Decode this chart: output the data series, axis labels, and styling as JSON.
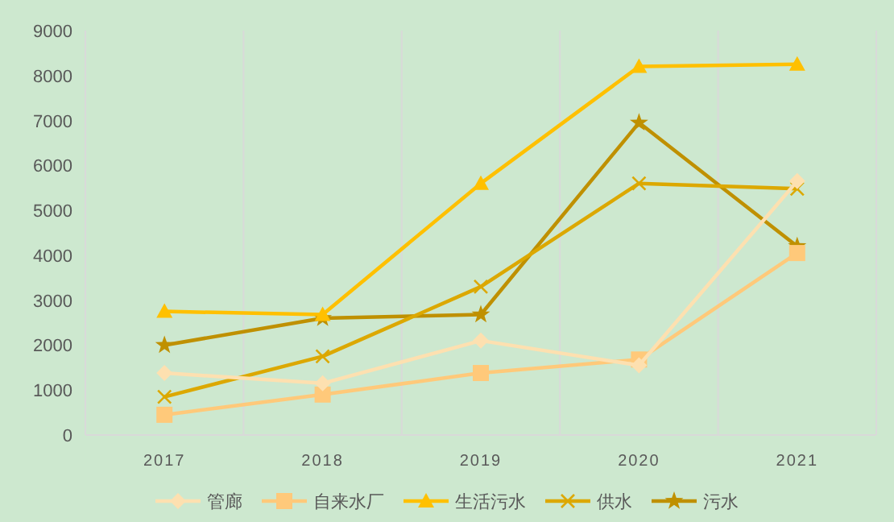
{
  "chart_data": {
    "type": "line",
    "categories": [
      "2017",
      "2018",
      "2019",
      "2020",
      "2021"
    ],
    "ylim": [
      0,
      9000
    ],
    "yticks": [
      0,
      1000,
      2000,
      3000,
      4000,
      5000,
      6000,
      7000,
      8000,
      9000
    ],
    "grid": "x",
    "legend": "bottom",
    "series": [
      {
        "name": "管廊",
        "color": "#fde0b0",
        "marker": "diamond",
        "values": [
          1380,
          1150,
          2100,
          1550,
          5650
        ]
      },
      {
        "name": "自来水厂",
        "color": "#ffc97a",
        "marker": "square",
        "values": [
          450,
          900,
          1380,
          1680,
          4050
        ]
      },
      {
        "name": "生活污水",
        "color": "#ffc000",
        "marker": "triangle",
        "values": [
          2750,
          2680,
          5600,
          8200,
          8250
        ]
      },
      {
        "name": "供水",
        "color": "#dca800",
        "marker": "cross",
        "values": [
          850,
          1750,
          3300,
          5600,
          5480
        ]
      },
      {
        "name": "污水",
        "color": "#bf9000",
        "marker": "star",
        "values": [
          2000,
          2600,
          2680,
          6950,
          4200
        ]
      }
    ]
  }
}
